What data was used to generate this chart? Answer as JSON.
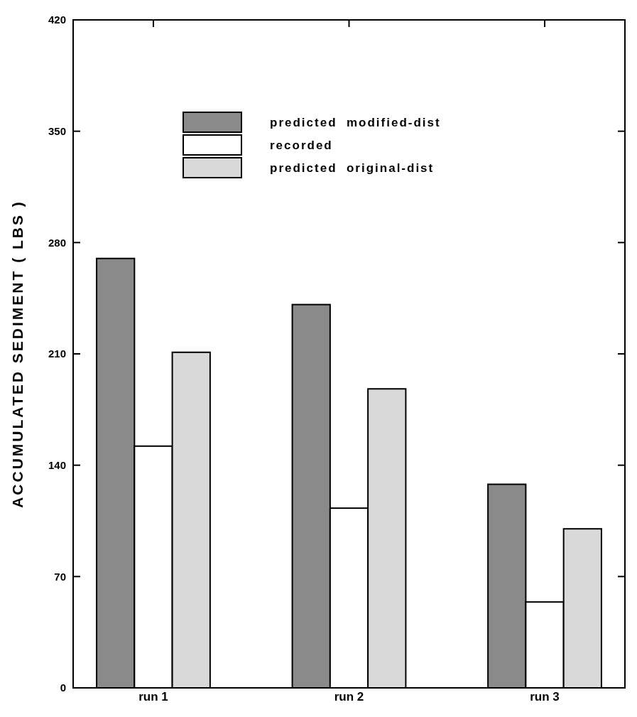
{
  "chart_data": {
    "type": "bar",
    "ylabel": "ACCUMULATED SEDIMENT ( LBS )",
    "categories": [
      "run 1",
      "run 2",
      "run 3"
    ],
    "series": [
      {
        "name": "predicted  modified-dist",
        "color": "#8a8a8a",
        "values": [
          270,
          241,
          128
        ]
      },
      {
        "name": "recorded",
        "color": "#ffffff",
        "values": [
          152,
          113,
          54
        ]
      },
      {
        "name": "predicted  original-dist",
        "color": "#d9d9d9",
        "values": [
          211,
          188,
          100
        ]
      }
    ],
    "ylim": [
      0,
      420
    ],
    "yticks": [
      0,
      70,
      140,
      210,
      280,
      350,
      420
    ],
    "legend": "top",
    "grid": false
  }
}
